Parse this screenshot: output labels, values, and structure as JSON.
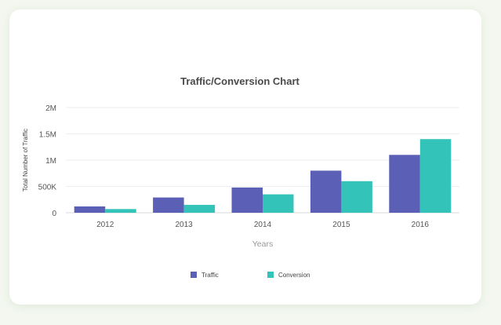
{
  "chart_data": {
    "type": "bar",
    "title": "Traffic/Conversion Chart",
    "xlabel": "Years",
    "ylabel": "Total Number of Traffic",
    "categories": [
      "2012",
      "2013",
      "2014",
      "2015",
      "2016"
    ],
    "ylim": [
      0,
      2000000
    ],
    "yticks": [
      {
        "value": 0,
        "label": "0"
      },
      {
        "value": 500000,
        "label": "500K"
      },
      {
        "value": 1000000,
        "label": "1M"
      },
      {
        "value": 1500000,
        "label": "1.5M"
      },
      {
        "value": 2000000,
        "label": "2M"
      }
    ],
    "grid": true,
    "legend": "bottom",
    "series": [
      {
        "name": "Traffic",
        "color": "#5b5fb5",
        "values": [
          120000,
          290000,
          480000,
          800000,
          1100000
        ]
      },
      {
        "name": "Conversion",
        "color": "#33c3b9",
        "values": [
          70000,
          150000,
          350000,
          600000,
          1400000
        ]
      }
    ]
  }
}
